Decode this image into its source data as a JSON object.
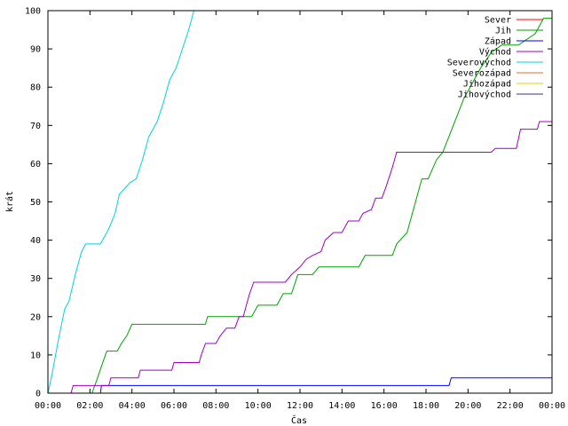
{
  "chart_data": {
    "type": "line",
    "xlabel": "Čas",
    "ylabel": "krát",
    "xlim": [
      0,
      24
    ],
    "ylim": [
      0,
      100
    ],
    "x_ticks": [
      {
        "value": 0,
        "label": "00:00"
      },
      {
        "value": 2,
        "label": "02:00"
      },
      {
        "value": 4,
        "label": "04:00"
      },
      {
        "value": 6,
        "label": "06:00"
      },
      {
        "value": 8,
        "label": "08:00"
      },
      {
        "value": 10,
        "label": "10:00"
      },
      {
        "value": 12,
        "label": "12:00"
      },
      {
        "value": 14,
        "label": "14:00"
      },
      {
        "value": 16,
        "label": "16:00"
      },
      {
        "value": 18,
        "label": "18:00"
      },
      {
        "value": 20,
        "label": "20:00"
      },
      {
        "value": 22,
        "label": "22:00"
      },
      {
        "value": 24,
        "label": "00:00"
      }
    ],
    "y_ticks": [
      {
        "value": 0,
        "label": "0"
      },
      {
        "value": 10,
        "label": "10"
      },
      {
        "value": 20,
        "label": "20"
      },
      {
        "value": 30,
        "label": "30"
      },
      {
        "value": 40,
        "label": "40"
      },
      {
        "value": 50,
        "label": "50"
      },
      {
        "value": 60,
        "label": "60"
      },
      {
        "value": 70,
        "label": "70"
      },
      {
        "value": 80,
        "label": "80"
      },
      {
        "value": 90,
        "label": "90"
      },
      {
        "value": 100,
        "label": "100"
      }
    ],
    "grid": false,
    "legend_position": "top-right",
    "series": [
      {
        "name": "Sever",
        "color": "#ff0000",
        "points": []
      },
      {
        "name": "Jih",
        "color": "#00a000",
        "points": [
          [
            0,
            0
          ],
          [
            2.1,
            0
          ],
          [
            2.3,
            3
          ],
          [
            2.55,
            7
          ],
          [
            2.8,
            11
          ],
          [
            3.3,
            11
          ],
          [
            3.5,
            13
          ],
          [
            3.75,
            15
          ],
          [
            4,
            18
          ],
          [
            7.5,
            18
          ],
          [
            7.6,
            20
          ],
          [
            9.7,
            20
          ],
          [
            10,
            23
          ],
          [
            10.9,
            23
          ],
          [
            11.2,
            26
          ],
          [
            11.6,
            26
          ],
          [
            11.9,
            31
          ],
          [
            12.6,
            31
          ],
          [
            12.9,
            33
          ],
          [
            14.8,
            33
          ],
          [
            15.1,
            36
          ],
          [
            16.4,
            36
          ],
          [
            16.6,
            39
          ],
          [
            17.1,
            42
          ],
          [
            17.4,
            48
          ],
          [
            17.8,
            56
          ],
          [
            18.1,
            56
          ],
          [
            18.5,
            61
          ],
          [
            18.8,
            63
          ],
          [
            19.3,
            70
          ],
          [
            19.8,
            77
          ],
          [
            20.1,
            80
          ],
          [
            20.6,
            85
          ],
          [
            21.1,
            89
          ],
          [
            21.6,
            91
          ],
          [
            22.4,
            91
          ],
          [
            23.2,
            94
          ],
          [
            23.6,
            98
          ],
          [
            24,
            98
          ]
        ]
      },
      {
        "name": "Západ",
        "color": "#0000ff",
        "points": [
          [
            0,
            0
          ],
          [
            2.5,
            0
          ],
          [
            2.55,
            2
          ],
          [
            19.1,
            2
          ],
          [
            19.2,
            4
          ],
          [
            24,
            4
          ]
        ]
      },
      {
        "name": "Východ",
        "color": "#a000c0",
        "points": [
          [
            0,
            0
          ],
          [
            1.1,
            0
          ],
          [
            1.2,
            2
          ],
          [
            2.9,
            2
          ],
          [
            3,
            4
          ],
          [
            4.3,
            4
          ],
          [
            4.4,
            6
          ],
          [
            5.9,
            6
          ],
          [
            6,
            8
          ],
          [
            7.2,
            8
          ],
          [
            7.3,
            10
          ],
          [
            7.5,
            13
          ],
          [
            8,
            13
          ],
          [
            8.2,
            15
          ],
          [
            8.5,
            17
          ],
          [
            8.9,
            17
          ],
          [
            9.1,
            20
          ],
          [
            9.3,
            20
          ],
          [
            9.45,
            23
          ],
          [
            9.6,
            26
          ],
          [
            9.8,
            29
          ],
          [
            11.3,
            29
          ],
          [
            11.6,
            31
          ],
          [
            12,
            33
          ],
          [
            12.3,
            35
          ],
          [
            12.6,
            36
          ],
          [
            13,
            37
          ],
          [
            13.2,
            40
          ],
          [
            13.6,
            42
          ],
          [
            14,
            42
          ],
          [
            14.3,
            45
          ],
          [
            14.8,
            45
          ],
          [
            15,
            47
          ],
          [
            15.4,
            48
          ],
          [
            15.6,
            51
          ],
          [
            15.9,
            51
          ],
          [
            16.1,
            54
          ],
          [
            16.4,
            59
          ],
          [
            16.6,
            63
          ],
          [
            21.1,
            63
          ],
          [
            21.3,
            64
          ],
          [
            22.3,
            64
          ],
          [
            22.5,
            69
          ],
          [
            23.3,
            69
          ],
          [
            23.4,
            71
          ],
          [
            24,
            71
          ]
        ]
      },
      {
        "name": "Severovýchod",
        "color": "#00d0e0",
        "points": [
          [
            0,
            0
          ],
          [
            0.2,
            5
          ],
          [
            0.5,
            14
          ],
          [
            0.8,
            22
          ],
          [
            1.0,
            24
          ],
          [
            1.3,
            31
          ],
          [
            1.6,
            37
          ],
          [
            1.8,
            39
          ],
          [
            2.5,
            39
          ],
          [
            2.9,
            43
          ],
          [
            3.2,
            47
          ],
          [
            3.4,
            52
          ],
          [
            3.9,
            55
          ],
          [
            4.2,
            56
          ],
          [
            4.5,
            61
          ],
          [
            4.8,
            67
          ],
          [
            5.2,
            71
          ],
          [
            5.5,
            76
          ],
          [
            5.8,
            82
          ],
          [
            6.1,
            85
          ],
          [
            6.4,
            90
          ],
          [
            6.7,
            95
          ],
          [
            6.95,
            100
          ]
        ]
      },
      {
        "name": "Severozápad",
        "color": "#e07020",
        "points": []
      },
      {
        "name": "Jihozápad",
        "color": "#e0d000",
        "points": []
      },
      {
        "name": "Jihovýchod",
        "color": "#3030a0",
        "points": []
      }
    ]
  }
}
